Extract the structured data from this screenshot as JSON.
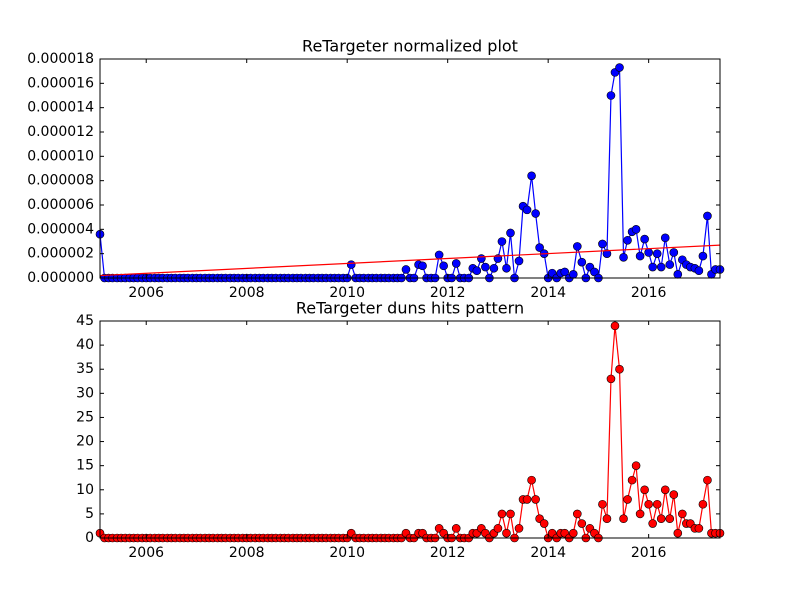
{
  "chart_data": [
    {
      "type": "line",
      "title": "ReTargeter normalized plot",
      "x": [
        2005.08,
        2005.17,
        2005.25,
        2005.33,
        2005.42,
        2005.5,
        2005.58,
        2005.67,
        2005.75,
        2005.83,
        2005.92,
        2006,
        2006.08,
        2006.17,
        2006.25,
        2006.33,
        2006.42,
        2006.5,
        2006.58,
        2006.67,
        2006.75,
        2006.83,
        2006.92,
        2007,
        2007.08,
        2007.17,
        2007.25,
        2007.33,
        2007.42,
        2007.5,
        2007.58,
        2007.67,
        2007.75,
        2007.83,
        2007.92,
        2008,
        2008.08,
        2008.17,
        2008.25,
        2008.33,
        2008.42,
        2008.5,
        2008.58,
        2008.67,
        2008.75,
        2008.83,
        2008.92,
        2009,
        2009.08,
        2009.17,
        2009.25,
        2009.33,
        2009.42,
        2009.5,
        2009.58,
        2009.67,
        2009.75,
        2009.83,
        2009.92,
        2010,
        2010.08,
        2010.17,
        2010.25,
        2010.33,
        2010.42,
        2010.5,
        2010.58,
        2010.67,
        2010.75,
        2010.83,
        2010.92,
        2011,
        2011.08,
        2011.17,
        2011.25,
        2011.33,
        2011.42,
        2011.5,
        2011.58,
        2011.67,
        2011.75,
        2011.83,
        2011.92,
        2012,
        2012.08,
        2012.17,
        2012.25,
        2012.33,
        2012.42,
        2012.5,
        2012.58,
        2012.67,
        2012.75,
        2012.83,
        2012.92,
        2013,
        2013.08,
        2013.17,
        2013.25,
        2013.33,
        2013.42,
        2013.5,
        2013.58,
        2013.67,
        2013.75,
        2013.83,
        2013.92,
        2014,
        2014.08,
        2014.17,
        2014.25,
        2014.33,
        2014.42,
        2014.5,
        2014.58,
        2014.67,
        2014.75,
        2014.83,
        2014.92,
        2015,
        2015.08,
        2015.17,
        2015.25,
        2015.33,
        2015.42,
        2015.5,
        2015.58,
        2015.67,
        2015.75,
        2015.83,
        2015.92,
        2016,
        2016.08,
        2016.17,
        2016.25,
        2016.33,
        2016.42,
        2016.5,
        2016.58,
        2016.67,
        2016.75,
        2016.83,
        2016.92,
        2017,
        2017.08,
        2017.17,
        2017.25,
        2017.33,
        2017.42
      ],
      "series": [
        {
          "color": "#0000ff",
          "marker": true,
          "values": [
            3.6e-06,
            0,
            0,
            0,
            0,
            0,
            0,
            0,
            0,
            0,
            0,
            0,
            0,
            0,
            0,
            0,
            0,
            0,
            0,
            0,
            0,
            0,
            0,
            0,
            0,
            0,
            0,
            0,
            0,
            0,
            0,
            0,
            0,
            0,
            0,
            0,
            0,
            0,
            0,
            0,
            0,
            0,
            0,
            0,
            0,
            0,
            0,
            0,
            0,
            0,
            0,
            0,
            0,
            0,
            0,
            0,
            0,
            0,
            0,
            0,
            1.1e-06,
            0,
            0,
            0,
            0,
            0,
            0,
            0,
            0,
            0,
            0,
            0,
            0,
            7e-07,
            0,
            0,
            1.1e-06,
            1e-06,
            0,
            0,
            0,
            1.9e-06,
            1e-06,
            0,
            0,
            1.2e-06,
            0,
            0,
            0,
            8e-07,
            6e-07,
            1.6e-06,
            9e-07,
            0,
            8e-07,
            1.6e-06,
            3e-06,
            8e-07,
            3.7e-06,
            0,
            1.4e-06,
            5.9e-06,
            5.6e-06,
            8.4e-06,
            5.3e-06,
            2.5e-06,
            2e-06,
            0,
            4e-07,
            0,
            4e-07,
            5e-07,
            0,
            3e-07,
            2.6e-06,
            1.3e-06,
            0,
            9e-07,
            5e-07,
            0,
            2.8e-06,
            2e-06,
            1.5e-05,
            1.69e-05,
            1.73e-05,
            1.7e-06,
            3.1e-06,
            3.8e-06,
            4e-06,
            1.8e-06,
            3.2e-06,
            2.1e-06,
            9e-07,
            2e-06,
            9e-07,
            3.3e-06,
            1.1e-06,
            2.1e-06,
            3e-07,
            1.5e-06,
            1.1e-06,
            9e-07,
            8e-07,
            6e-07,
            1.8e-06,
            5.1e-06,
            3e-07,
            7e-07,
            7e-07
          ]
        },
        {
          "color": "#ff0000",
          "marker": false,
          "x": [
            2005.08,
            2017.42
          ],
          "values": [
            2e-07,
            2.7e-06
          ]
        }
      ],
      "xlim": [
        2005.08,
        2017.42
      ],
      "xticks": [
        2006,
        2008,
        2010,
        2012,
        2014,
        2016
      ],
      "ylim": [
        0,
        1.8e-05
      ],
      "yticks": [
        {
          "value": 0,
          "label": "0.000000"
        },
        {
          "value": 2e-06,
          "label": "0.000002"
        },
        {
          "value": 4e-06,
          "label": "0.000004"
        },
        {
          "value": 6e-06,
          "label": "0.000006"
        },
        {
          "value": 8e-06,
          "label": "0.000008"
        },
        {
          "value": 1e-05,
          "label": "0.000010"
        },
        {
          "value": 1.2e-05,
          "label": "0.000012"
        },
        {
          "value": 1.4e-05,
          "label": "0.000014"
        },
        {
          "value": 1.6e-05,
          "label": "0.000016"
        },
        {
          "value": 1.8e-05,
          "label": "0.000018"
        }
      ]
    },
    {
      "type": "line",
      "title": "ReTargeter duns hits pattern",
      "x": [
        2005.08,
        2005.17,
        2005.25,
        2005.33,
        2005.42,
        2005.5,
        2005.58,
        2005.67,
        2005.75,
        2005.83,
        2005.92,
        2006,
        2006.08,
        2006.17,
        2006.25,
        2006.33,
        2006.42,
        2006.5,
        2006.58,
        2006.67,
        2006.75,
        2006.83,
        2006.92,
        2007,
        2007.08,
        2007.17,
        2007.25,
        2007.33,
        2007.42,
        2007.5,
        2007.58,
        2007.67,
        2007.75,
        2007.83,
        2007.92,
        2008,
        2008.08,
        2008.17,
        2008.25,
        2008.33,
        2008.42,
        2008.5,
        2008.58,
        2008.67,
        2008.75,
        2008.83,
        2008.92,
        2009,
        2009.08,
        2009.17,
        2009.25,
        2009.33,
        2009.42,
        2009.5,
        2009.58,
        2009.67,
        2009.75,
        2009.83,
        2009.92,
        2010,
        2010.08,
        2010.17,
        2010.25,
        2010.33,
        2010.42,
        2010.5,
        2010.58,
        2010.67,
        2010.75,
        2010.83,
        2010.92,
        2011,
        2011.08,
        2011.17,
        2011.25,
        2011.33,
        2011.42,
        2011.5,
        2011.58,
        2011.67,
        2011.75,
        2011.83,
        2011.92,
        2012,
        2012.08,
        2012.17,
        2012.25,
        2012.33,
        2012.42,
        2012.5,
        2012.58,
        2012.67,
        2012.75,
        2012.83,
        2012.92,
        2013,
        2013.08,
        2013.17,
        2013.25,
        2013.33,
        2013.42,
        2013.5,
        2013.58,
        2013.67,
        2013.75,
        2013.83,
        2013.92,
        2014,
        2014.08,
        2014.17,
        2014.25,
        2014.33,
        2014.42,
        2014.5,
        2014.58,
        2014.67,
        2014.75,
        2014.83,
        2014.92,
        2015,
        2015.08,
        2015.17,
        2015.25,
        2015.33,
        2015.42,
        2015.5,
        2015.58,
        2015.67,
        2015.75,
        2015.83,
        2015.92,
        2016,
        2016.08,
        2016.17,
        2016.25,
        2016.33,
        2016.42,
        2016.5,
        2016.58,
        2016.67,
        2016.75,
        2016.83,
        2016.92,
        2017,
        2017.08,
        2017.17,
        2017.25,
        2017.33,
        2017.42
      ],
      "series": [
        {
          "color": "#ff0000",
          "marker": true,
          "values": [
            1,
            0,
            0,
            0,
            0,
            0,
            0,
            0,
            0,
            0,
            0,
            0,
            0,
            0,
            0,
            0,
            0,
            0,
            0,
            0,
            0,
            0,
            0,
            0,
            0,
            0,
            0,
            0,
            0,
            0,
            0,
            0,
            0,
            0,
            0,
            0,
            0,
            0,
            0,
            0,
            0,
            0,
            0,
            0,
            0,
            0,
            0,
            0,
            0,
            0,
            0,
            0,
            0,
            0,
            0,
            0,
            0,
            0,
            0,
            0,
            1,
            0,
            0,
            0,
            0,
            0,
            0,
            0,
            0,
            0,
            0,
            0,
            0,
            1,
            0,
            0,
            1,
            1,
            0,
            0,
            0,
            2,
            1,
            0,
            0,
            2,
            0,
            0,
            0,
            1,
            1,
            2,
            1,
            0,
            1,
            2,
            5,
            1,
            5,
            0,
            2,
            8,
            8,
            12,
            8,
            4,
            3,
            0,
            1,
            0,
            1,
            1,
            0,
            1,
            5,
            3,
            0,
            2,
            1,
            0,
            7,
            4,
            33,
            44,
            35,
            4,
            8,
            12,
            15,
            5,
            10,
            7,
            3,
            7,
            4,
            10,
            4,
            9,
            1,
            5,
            3,
            3,
            2,
            2,
            7,
            12,
            1,
            1,
            1
          ]
        }
      ],
      "xlim": [
        2005.08,
        2017.42
      ],
      "xticks": [
        2006,
        2008,
        2010,
        2012,
        2014,
        2016
      ],
      "ylim": [
        0,
        45
      ],
      "yticks": [
        0,
        5,
        10,
        15,
        20,
        25,
        30,
        35,
        40,
        45
      ]
    }
  ]
}
